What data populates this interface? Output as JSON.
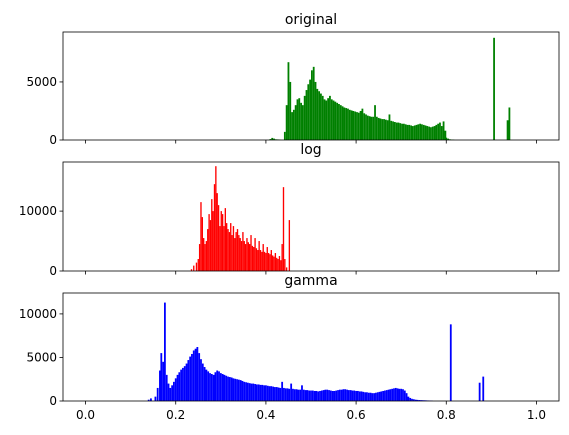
{
  "chart_data": [
    {
      "type": "bar",
      "title": "original",
      "color": "#008000",
      "xlim": [
        -0.05,
        1.05
      ],
      "ylim": [
        0,
        9300
      ],
      "yticks": [
        0,
        5000
      ],
      "ytick_labels": [
        "0",
        "5000"
      ],
      "xticks": [
        0.0,
        0.2,
        0.4,
        0.6,
        0.8,
        1.0
      ],
      "xtick_labels": [],
      "bin_width": 0.004,
      "bars": [
        [
          0.41,
          80
        ],
        [
          0.414,
          180
        ],
        [
          0.418,
          120
        ],
        [
          0.422,
          60
        ],
        [
          0.426,
          50
        ],
        [
          0.43,
          40
        ],
        [
          0.442,
          700
        ],
        [
          0.446,
          3000
        ],
        [
          0.45,
          6700
        ],
        [
          0.454,
          5000
        ],
        [
          0.458,
          2400
        ],
        [
          0.462,
          2600
        ],
        [
          0.466,
          3000
        ],
        [
          0.47,
          3500
        ],
        [
          0.474,
          3600
        ],
        [
          0.478,
          3200
        ],
        [
          0.482,
          3000
        ],
        [
          0.486,
          3800
        ],
        [
          0.49,
          4300
        ],
        [
          0.494,
          4800
        ],
        [
          0.498,
          5200
        ],
        [
          0.502,
          6000
        ],
        [
          0.506,
          6300
        ],
        [
          0.51,
          5000
        ],
        [
          0.514,
          4400
        ],
        [
          0.518,
          4200
        ],
        [
          0.522,
          4000
        ],
        [
          0.526,
          3800
        ],
        [
          0.53,
          3500
        ],
        [
          0.534,
          3400
        ],
        [
          0.538,
          3600
        ],
        [
          0.542,
          3800
        ],
        [
          0.546,
          3500
        ],
        [
          0.55,
          3400
        ],
        [
          0.554,
          3300
        ],
        [
          0.558,
          3200
        ],
        [
          0.562,
          3100
        ],
        [
          0.566,
          3000
        ],
        [
          0.57,
          2900
        ],
        [
          0.574,
          2800
        ],
        [
          0.578,
          2750
        ],
        [
          0.582,
          2700
        ],
        [
          0.586,
          2600
        ],
        [
          0.59,
          2550
        ],
        [
          0.594,
          2500
        ],
        [
          0.598,
          2450
        ],
        [
          0.602,
          2400
        ],
        [
          0.606,
          2350
        ],
        [
          0.61,
          2500
        ],
        [
          0.614,
          2700
        ],
        [
          0.618,
          2300
        ],
        [
          0.622,
          2200
        ],
        [
          0.626,
          2100
        ],
        [
          0.63,
          2050
        ],
        [
          0.634,
          2000
        ],
        [
          0.638,
          2000
        ],
        [
          0.642,
          3000
        ],
        [
          0.646,
          2000
        ],
        [
          0.65,
          1900
        ],
        [
          0.654,
          1850
        ],
        [
          0.658,
          1800
        ],
        [
          0.662,
          1800
        ],
        [
          0.666,
          1750
        ],
        [
          0.67,
          1700
        ],
        [
          0.674,
          2200
        ],
        [
          0.678,
          1650
        ],
        [
          0.682,
          1600
        ],
        [
          0.686,
          1550
        ],
        [
          0.69,
          1500
        ],
        [
          0.694,
          1500
        ],
        [
          0.698,
          1450
        ],
        [
          0.702,
          1400
        ],
        [
          0.706,
          1400
        ],
        [
          0.71,
          1350
        ],
        [
          0.714,
          1300
        ],
        [
          0.718,
          1300
        ],
        [
          0.722,
          1250
        ],
        [
          0.726,
          1200
        ],
        [
          0.73,
          1250
        ],
        [
          0.734,
          1300
        ],
        [
          0.738,
          1350
        ],
        [
          0.742,
          1400
        ],
        [
          0.746,
          1350
        ],
        [
          0.75,
          1300
        ],
        [
          0.754,
          1250
        ],
        [
          0.758,
          1200
        ],
        [
          0.762,
          1150
        ],
        [
          0.766,
          1100
        ],
        [
          0.77,
          1150
        ],
        [
          0.774,
          1200
        ],
        [
          0.778,
          1300
        ],
        [
          0.782,
          1400
        ],
        [
          0.786,
          1500
        ],
        [
          0.79,
          1200
        ],
        [
          0.794,
          1600
        ],
        [
          0.798,
          800
        ],
        [
          0.8,
          200
        ],
        [
          0.804,
          120
        ],
        [
          0.808,
          60
        ],
        [
          0.812,
          40
        ],
        [
          0.816,
          30
        ],
        [
          0.906,
          8800
        ],
        [
          0.936,
          1700
        ],
        [
          0.94,
          2800
        ]
      ]
    },
    {
      "type": "bar",
      "title": "log",
      "color": "#ff0000",
      "xlim": [
        -0.05,
        1.05
      ],
      "ylim": [
        0,
        18200
      ],
      "yticks": [
        0,
        10000
      ],
      "ytick_labels": [
        "0",
        "10000"
      ],
      "xticks": [
        0.0,
        0.2,
        0.4,
        0.6,
        0.8,
        1.0
      ],
      "xtick_labels": [],
      "bin_width": 0.003,
      "bars": [
        [
          0.235,
          300
        ],
        [
          0.24,
          900
        ],
        [
          0.246,
          1400
        ],
        [
          0.25,
          2000
        ],
        [
          0.253,
          4500
        ],
        [
          0.256,
          11500
        ],
        [
          0.259,
          9000
        ],
        [
          0.262,
          5500
        ],
        [
          0.265,
          4500
        ],
        [
          0.268,
          5000
        ],
        [
          0.271,
          7000
        ],
        [
          0.274,
          9500
        ],
        [
          0.277,
          8500
        ],
        [
          0.28,
          12000
        ],
        [
          0.283,
          10000
        ],
        [
          0.286,
          14500
        ],
        [
          0.289,
          17500
        ],
        [
          0.292,
          13000
        ],
        [
          0.295,
          11000
        ],
        [
          0.298,
          7500
        ],
        [
          0.301,
          10000
        ],
        [
          0.304,
          9500
        ],
        [
          0.307,
          7500
        ],
        [
          0.31,
          10500
        ],
        [
          0.313,
          8000
        ],
        [
          0.316,
          7000
        ],
        [
          0.319,
          6500
        ],
        [
          0.322,
          8000
        ],
        [
          0.325,
          6000
        ],
        [
          0.328,
          7500
        ],
        [
          0.331,
          5500
        ],
        [
          0.334,
          6500
        ],
        [
          0.337,
          7000
        ],
        [
          0.34,
          6000
        ],
        [
          0.343,
          5500
        ],
        [
          0.346,
          5000
        ],
        [
          0.349,
          6500
        ],
        [
          0.352,
          5000
        ],
        [
          0.355,
          4500
        ],
        [
          0.358,
          5500
        ],
        [
          0.361,
          4800
        ],
        [
          0.364,
          4500
        ],
        [
          0.367,
          6000
        ],
        [
          0.37,
          4200
        ],
        [
          0.373,
          4000
        ],
        [
          0.376,
          5500
        ],
        [
          0.379,
          3800
        ],
        [
          0.382,
          3500
        ],
        [
          0.385,
          5000
        ],
        [
          0.388,
          3500
        ],
        [
          0.391,
          3200
        ],
        [
          0.394,
          4500
        ],
        [
          0.397,
          3200
        ],
        [
          0.4,
          3000
        ],
        [
          0.403,
          4000
        ],
        [
          0.406,
          3000
        ],
        [
          0.409,
          2800
        ],
        [
          0.412,
          3500
        ],
        [
          0.415,
          2600
        ],
        [
          0.418,
          2400
        ],
        [
          0.421,
          3000
        ],
        [
          0.424,
          2200
        ],
        [
          0.427,
          2000
        ],
        [
          0.43,
          2500
        ],
        [
          0.433,
          1800
        ],
        [
          0.436,
          4500
        ],
        [
          0.439,
          14000
        ],
        [
          0.442,
          2000
        ],
        [
          0.446,
          600
        ],
        [
          0.452,
          8500
        ]
      ]
    },
    {
      "type": "bar",
      "title": "gamma",
      "color": "#0000ff",
      "xlim": [
        -0.05,
        1.05
      ],
      "ylim": [
        0,
        12400
      ],
      "yticks": [
        0,
        5000,
        10000
      ],
      "ytick_labels": [
        "0",
        "5000",
        "10000"
      ],
      "xticks": [
        0.0,
        0.2,
        0.4,
        0.6,
        0.8,
        1.0
      ],
      "xtick_labels": [
        "0.0",
        "0.2",
        "0.4",
        "0.6",
        "0.8",
        "1.0"
      ],
      "bin_width": 0.004,
      "bars": [
        [
          0.14,
          150
        ],
        [
          0.145,
          300
        ],
        [
          0.155,
          500
        ],
        [
          0.16,
          1500
        ],
        [
          0.165,
          3500
        ],
        [
          0.168,
          5500
        ],
        [
          0.172,
          4500
        ],
        [
          0.176,
          11300
        ],
        [
          0.18,
          3000
        ],
        [
          0.184,
          2000
        ],
        [
          0.188,
          1500
        ],
        [
          0.192,
          1800
        ],
        [
          0.196,
          2200
        ],
        [
          0.2,
          2600
        ],
        [
          0.204,
          3000
        ],
        [
          0.208,
          3300
        ],
        [
          0.212,
          3600
        ],
        [
          0.216,
          3800
        ],
        [
          0.22,
          4000
        ],
        [
          0.224,
          4300
        ],
        [
          0.228,
          4700
        ],
        [
          0.232,
          5100
        ],
        [
          0.236,
          5400
        ],
        [
          0.24,
          5800
        ],
        [
          0.244,
          6000
        ],
        [
          0.248,
          6200
        ],
        [
          0.252,
          5500
        ],
        [
          0.256,
          4800
        ],
        [
          0.26,
          4300
        ],
        [
          0.264,
          3900
        ],
        [
          0.268,
          3600
        ],
        [
          0.272,
          3400
        ],
        [
          0.276,
          3200
        ],
        [
          0.28,
          3100
        ],
        [
          0.284,
          3000
        ],
        [
          0.288,
          3300
        ],
        [
          0.292,
          3500
        ],
        [
          0.296,
          3400
        ],
        [
          0.3,
          3200
        ],
        [
          0.304,
          3100
        ],
        [
          0.308,
          3000
        ],
        [
          0.312,
          2900
        ],
        [
          0.316,
          2800
        ],
        [
          0.32,
          2750
        ],
        [
          0.324,
          2700
        ],
        [
          0.328,
          2600
        ],
        [
          0.332,
          2550
        ],
        [
          0.336,
          2500
        ],
        [
          0.34,
          2450
        ],
        [
          0.344,
          2400
        ],
        [
          0.348,
          2300
        ],
        [
          0.352,
          2200
        ],
        [
          0.356,
          2150
        ],
        [
          0.36,
          2100
        ],
        [
          0.364,
          2050
        ],
        [
          0.368,
          2000
        ],
        [
          0.372,
          2000
        ],
        [
          0.376,
          1950
        ],
        [
          0.38,
          1900
        ],
        [
          0.384,
          1900
        ],
        [
          0.388,
          1850
        ],
        [
          0.392,
          1850
        ],
        [
          0.396,
          1800
        ],
        [
          0.4,
          1800
        ],
        [
          0.404,
          1750
        ],
        [
          0.408,
          1700
        ],
        [
          0.412,
          1700
        ],
        [
          0.416,
          1650
        ],
        [
          0.42,
          1600
        ],
        [
          0.424,
          1600
        ],
        [
          0.428,
          1550
        ],
        [
          0.432,
          1500
        ],
        [
          0.436,
          2200
        ],
        [
          0.44,
          1500
        ],
        [
          0.444,
          1450
        ],
        [
          0.448,
          1450
        ],
        [
          0.452,
          1400
        ],
        [
          0.456,
          2000
        ],
        [
          0.46,
          1400
        ],
        [
          0.464,
          1350
        ],
        [
          0.468,
          1350
        ],
        [
          0.472,
          1300
        ],
        [
          0.476,
          1300
        ],
        [
          0.48,
          1800
        ],
        [
          0.484,
          1300
        ],
        [
          0.488,
          1250
        ],
        [
          0.492,
          1250
        ],
        [
          0.496,
          1200
        ],
        [
          0.5,
          1200
        ],
        [
          0.504,
          1200
        ],
        [
          0.508,
          1150
        ],
        [
          0.512,
          1150
        ],
        [
          0.516,
          1100
        ],
        [
          0.52,
          1150
        ],
        [
          0.524,
          1200
        ],
        [
          0.528,
          1250
        ],
        [
          0.532,
          1300
        ],
        [
          0.536,
          1300
        ],
        [
          0.54,
          1250
        ],
        [
          0.544,
          1200
        ],
        [
          0.548,
          1150
        ],
        [
          0.552,
          1150
        ],
        [
          0.556,
          1200
        ],
        [
          0.56,
          1250
        ],
        [
          0.564,
          1300
        ],
        [
          0.568,
          1300
        ],
        [
          0.572,
          1350
        ],
        [
          0.576,
          1350
        ],
        [
          0.58,
          1300
        ],
        [
          0.584,
          1250
        ],
        [
          0.588,
          1250
        ],
        [
          0.592,
          1200
        ],
        [
          0.596,
          1200
        ],
        [
          0.6,
          1150
        ],
        [
          0.604,
          1150
        ],
        [
          0.608,
          1100
        ],
        [
          0.612,
          1100
        ],
        [
          0.616,
          1050
        ],
        [
          0.62,
          1000
        ],
        [
          0.624,
          1000
        ],
        [
          0.628,
          950
        ],
        [
          0.632,
          950
        ],
        [
          0.636,
          900
        ],
        [
          0.64,
          900
        ],
        [
          0.644,
          950
        ],
        [
          0.648,
          1000
        ],
        [
          0.652,
          1050
        ],
        [
          0.656,
          1100
        ],
        [
          0.66,
          1150
        ],
        [
          0.664,
          1200
        ],
        [
          0.668,
          1250
        ],
        [
          0.672,
          1300
        ],
        [
          0.676,
          1350
        ],
        [
          0.68,
          1400
        ],
        [
          0.684,
          1450
        ],
        [
          0.688,
          1500
        ],
        [
          0.692,
          1450
        ],
        [
          0.696,
          1400
        ],
        [
          0.7,
          1400
        ],
        [
          0.704,
          1350
        ],
        [
          0.708,
          1200
        ],
        [
          0.712,
          900
        ],
        [
          0.716,
          500
        ],
        [
          0.72,
          350
        ],
        [
          0.724,
          250
        ],
        [
          0.728,
          200
        ],
        [
          0.732,
          150
        ],
        [
          0.736,
          130
        ],
        [
          0.74,
          110
        ],
        [
          0.744,
          100
        ],
        [
          0.748,
          90
        ],
        [
          0.752,
          80
        ],
        [
          0.756,
          70
        ],
        [
          0.76,
          60
        ],
        [
          0.764,
          50
        ],
        [
          0.768,
          40
        ],
        [
          0.81,
          8800
        ],
        [
          0.874,
          2100
        ],
        [
          0.882,
          2800
        ]
      ]
    }
  ]
}
